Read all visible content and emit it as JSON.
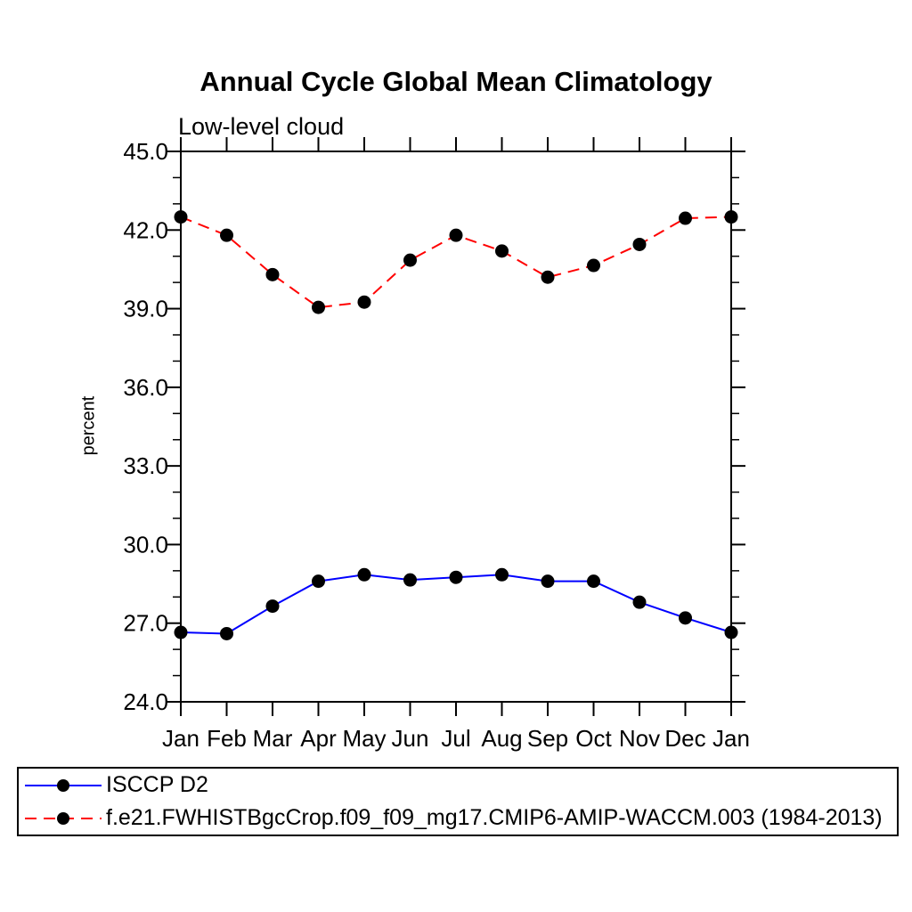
{
  "chart_data": {
    "type": "line",
    "title": "Annual Cycle Global Mean Climatology",
    "subtitle": "Low-level cloud",
    "ylabel": "percent",
    "xlabel": "",
    "categories": [
      "Jan",
      "Feb",
      "Mar",
      "Apr",
      "May",
      "Jun",
      "Jul",
      "Aug",
      "Sep",
      "Oct",
      "Nov",
      "Dec",
      "Jan"
    ],
    "ylim": [
      24.0,
      45.0
    ],
    "ytick_major_step": 3.0,
    "ytick_minor_step": 1.0,
    "ytick_labels": [
      "24.0",
      "27.0",
      "30.0",
      "33.0",
      "36.0",
      "39.0",
      "42.0",
      "45.0"
    ],
    "grid": false,
    "legend_position": "bottom-left-box",
    "axis_color": "#000000",
    "marker_color": "#000000",
    "series": [
      {
        "name": "ISCCP D2",
        "color": "#0000ff",
        "line_style": "solid",
        "marker": "circle",
        "values": [
          26.65,
          26.6,
          27.65,
          28.6,
          28.85,
          28.65,
          28.75,
          28.85,
          28.6,
          28.6,
          27.8,
          27.2,
          26.65
        ]
      },
      {
        "name": "f.e21.FWHISTBgcCrop.f09_f09_mg17.CMIP6-AMIP-WACCM.003 (1984-2013)",
        "color": "#ff0000",
        "line_style": "dashed",
        "marker": "circle",
        "values": [
          42.5,
          41.8,
          40.3,
          39.05,
          39.25,
          40.85,
          41.8,
          41.2,
          40.2,
          40.65,
          41.45,
          42.45,
          42.5
        ]
      }
    ]
  }
}
